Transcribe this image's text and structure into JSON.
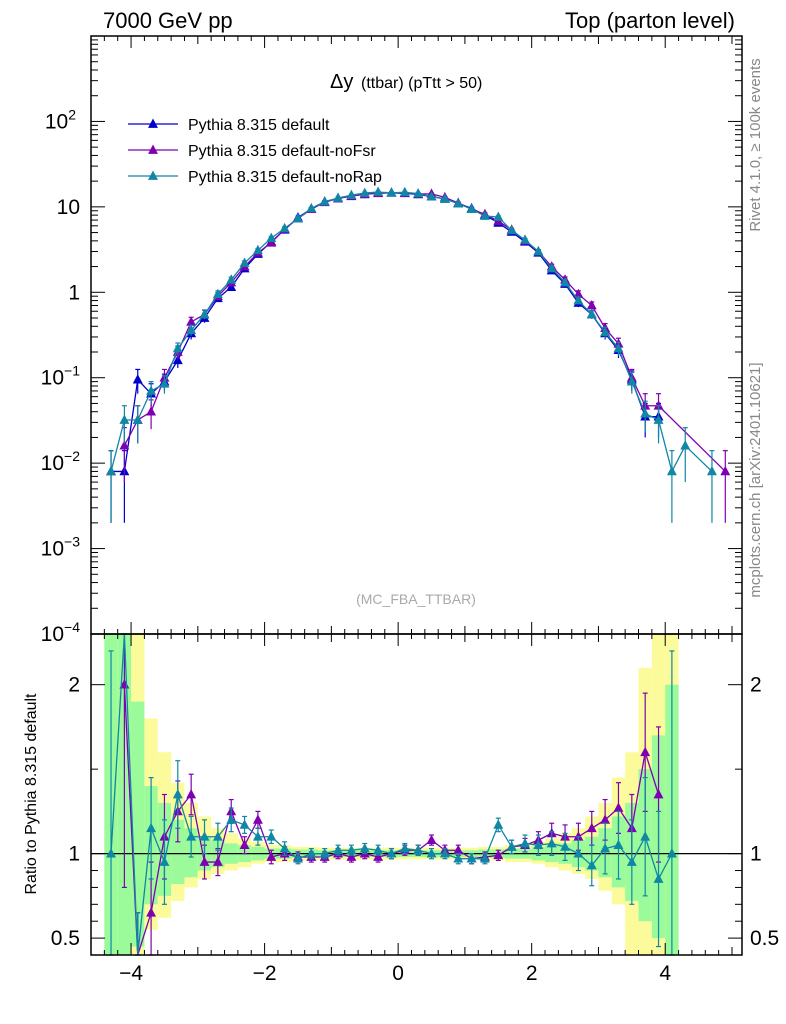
{
  "header": {
    "left": "7000 GeV pp",
    "right": "Top (parton level)"
  },
  "side_labels": {
    "rivet": "Rivet 4.1.0, ≥ 100k events",
    "mcplots": "mcplots.cern.ch [arXiv:2401.10621]"
  },
  "colors": {
    "default": "#0000cc",
    "noFsr": "#7f00b2",
    "noRap": "#0f87a5",
    "band_green": "#9bfb9b",
    "band_yellow": "#fbfb9b"
  },
  "chart_data": {
    "type": "line",
    "title_main": "Δy",
    "title_sub": "(ttbar) (pTtt > 50)",
    "watermark": "(MC_FBA_TTBAR)",
    "xlabel": "",
    "ylabel": "",
    "ratio_ylabel": "Ratio to Pythia 8.315 default",
    "xlim": [
      -4.6,
      5.15
    ],
    "ylim_log": [
      0.0001,
      1000
    ],
    "ratio_ylim": [
      0.4,
      2.3
    ],
    "x_ticks": [
      -4,
      -2,
      0,
      2,
      4
    ],
    "x_tick_labels": [
      "−4",
      "−2",
      "0",
      "2",
      "4"
    ],
    "y_ticks": [
      0.0001,
      0.001,
      0.01,
      0.1,
      1,
      10,
      100
    ],
    "y_tick_labels": [
      {
        "base": "10",
        "exp": "−4"
      },
      {
        "base": "10",
        "exp": "−3"
      },
      {
        "base": "10",
        "exp": "−2"
      },
      {
        "base": "10",
        "exp": "−1"
      },
      {
        "base": "1",
        "exp": ""
      },
      {
        "base": "10",
        "exp": ""
      },
      {
        "base": "10",
        "exp": "2"
      }
    ],
    "ratio_ticks": [
      0.5,
      1,
      2
    ],
    "ratio_tick_labels": [
      "0.5",
      "1",
      "2"
    ],
    "legend": [
      "Pythia 8.315 default",
      "Pythia 8.315 default-noFsr",
      "Pythia 8.315 default-noRap"
    ],
    "series": [
      {
        "name": "Pythia 8.315 default",
        "x": [
          -4.3,
          -4.1,
          -3.9,
          -3.7,
          -3.5,
          -3.3,
          -3.1,
          -2.9,
          -2.7,
          -2.5,
          -2.3,
          -2.1,
          -1.9,
          -1.7,
          -1.5,
          -1.3,
          -1.1,
          -0.9,
          -0.7,
          -0.5,
          -0.3,
          -0.1,
          0.1,
          0.3,
          0.5,
          0.7,
          0.9,
          1.1,
          1.3,
          1.5,
          1.7,
          1.9,
          2.1,
          2.3,
          2.5,
          2.7,
          2.9,
          3.1,
          3.3,
          3.5,
          3.7,
          3.9
        ],
        "y": [
          0.008,
          0.008,
          0.095,
          0.065,
          0.09,
          0.16,
          0.33,
          0.5,
          0.85,
          1.15,
          1.9,
          2.8,
          3.9,
          5.4,
          7.5,
          9.5,
          11.5,
          12.5,
          13.5,
          14.0,
          14.6,
          14.6,
          14.4,
          14.0,
          13.2,
          12.4,
          11.0,
          9.6,
          8.0,
          6.5,
          5.1,
          3.9,
          2.9,
          1.8,
          1.25,
          0.75,
          0.55,
          0.33,
          0.21,
          0.095,
          0.035,
          0.035
        ],
        "err": [
          0.006,
          0.006,
          0.03,
          0.02,
          0.02,
          0.03,
          0.05,
          0.06,
          0.08,
          0.1,
          0.13,
          0.15,
          0.18,
          0.22,
          0.26,
          0.28,
          0.3,
          0.32,
          0.33,
          0.34,
          0.35,
          0.35,
          0.35,
          0.34,
          0.33,
          0.32,
          0.3,
          0.28,
          0.26,
          0.23,
          0.2,
          0.17,
          0.15,
          0.12,
          0.1,
          0.08,
          0.06,
          0.05,
          0.04,
          0.025,
          0.015,
          0.015
        ]
      },
      {
        "name": "Pythia 8.315 default-noFsr",
        "x": [
          -4.1,
          -3.9,
          -3.7,
          -3.5,
          -3.3,
          -3.1,
          -2.9,
          -2.7,
          -2.5,
          -2.3,
          -2.1,
          -1.9,
          -1.7,
          -1.5,
          -1.3,
          -1.1,
          -0.9,
          -0.7,
          -0.5,
          -0.3,
          -0.1,
          0.1,
          0.3,
          0.5,
          0.7,
          0.9,
          1.1,
          1.3,
          1.5,
          1.7,
          1.9,
          2.1,
          2.3,
          2.5,
          2.7,
          2.9,
          3.1,
          3.3,
          3.5,
          3.7,
          3.9,
          4.9
        ],
        "y": [
          0.016,
          0.032,
          0.04,
          0.1,
          0.2,
          0.45,
          0.55,
          0.9,
          1.3,
          2.0,
          2.9,
          3.8,
          5.5,
          7.3,
          9.4,
          11.3,
          12.6,
          13.3,
          14.1,
          14.4,
          14.6,
          14.5,
          14.2,
          14.2,
          12.9,
          11.1,
          9.4,
          8.2,
          6.8,
          5.4,
          4.0,
          3.0,
          2.0,
          1.4,
          0.95,
          0.7,
          0.38,
          0.25,
          0.1,
          0.047,
          0.047,
          0.008
        ],
        "err": [
          0.01,
          0.015,
          0.015,
          0.025,
          0.035,
          0.06,
          0.07,
          0.09,
          0.1,
          0.13,
          0.15,
          0.18,
          0.22,
          0.26,
          0.28,
          0.3,
          0.32,
          0.33,
          0.34,
          0.35,
          0.35,
          0.35,
          0.35,
          0.34,
          0.32,
          0.3,
          0.28,
          0.26,
          0.24,
          0.21,
          0.18,
          0.15,
          0.13,
          0.11,
          0.09,
          0.07,
          0.05,
          0.04,
          0.025,
          0.018,
          0.018,
          0.006
        ]
      },
      {
        "name": "Pythia 8.315 default-noRap",
        "x": [
          -4.3,
          -4.1,
          -3.9,
          -3.7,
          -3.5,
          -3.3,
          -3.1,
          -2.9,
          -2.7,
          -2.5,
          -2.3,
          -2.1,
          -1.9,
          -1.7,
          -1.5,
          -1.3,
          -1.1,
          -0.9,
          -0.7,
          -0.5,
          -0.3,
          -0.1,
          0.1,
          0.3,
          0.5,
          0.7,
          0.9,
          1.1,
          1.3,
          1.5,
          1.7,
          1.9,
          2.1,
          2.3,
          2.5,
          2.7,
          2.9,
          3.1,
          3.3,
          3.5,
          3.7,
          3.9,
          4.1,
          4.3,
          4.7
        ],
        "y": [
          0.008,
          0.032,
          0.032,
          0.07,
          0.085,
          0.22,
          0.36,
          0.55,
          0.95,
          1.4,
          2.2,
          3.1,
          4.3,
          5.6,
          7.3,
          9.6,
          11.5,
          12.7,
          13.7,
          14.5,
          14.9,
          14.6,
          14.8,
          14.3,
          13.2,
          12.4,
          10.9,
          9.4,
          7.8,
          7.6,
          5.3,
          4.1,
          3.0,
          1.9,
          1.3,
          0.8,
          0.55,
          0.34,
          0.22,
          0.09,
          0.038,
          0.032,
          0.008,
          0.016,
          0.008
        ],
        "err": [
          0.006,
          0.015,
          0.015,
          0.02,
          0.02,
          0.035,
          0.05,
          0.065,
          0.09,
          0.1,
          0.13,
          0.15,
          0.18,
          0.22,
          0.26,
          0.28,
          0.3,
          0.32,
          0.33,
          0.34,
          0.35,
          0.35,
          0.35,
          0.34,
          0.33,
          0.32,
          0.3,
          0.28,
          0.26,
          0.24,
          0.2,
          0.17,
          0.15,
          0.12,
          0.1,
          0.08,
          0.06,
          0.05,
          0.04,
          0.025,
          0.015,
          0.015,
          0.006,
          0.01,
          0.006
        ]
      }
    ],
    "ratio_series": [
      {
        "name": "Pythia 8.315 default-noFsr",
        "x": [
          -4.1,
          -3.9,
          -3.7,
          -3.5,
          -3.3,
          -3.1,
          -2.9,
          -2.7,
          -2.5,
          -2.3,
          -2.1,
          -1.9,
          -1.7,
          -1.5,
          -1.3,
          -1.1,
          -0.9,
          -0.7,
          -0.5,
          -0.3,
          -0.1,
          0.1,
          0.3,
          0.5,
          0.7,
          0.9,
          1.1,
          1.3,
          1.5,
          1.7,
          1.9,
          2.1,
          2.3,
          2.5,
          2.7,
          2.9,
          3.1,
          3.3,
          3.5,
          3.7,
          3.9
        ],
        "y": [
          2.0,
          0.35,
          0.65,
          1.1,
          1.25,
          1.35,
          0.95,
          0.95,
          1.25,
          1.05,
          1.2,
          0.98,
          1.0,
          0.98,
          0.98,
          0.98,
          1.0,
          0.98,
          1.0,
          0.98,
          1.0,
          1.02,
          1.02,
          1.08,
          1.02,
          1.02,
          0.97,
          0.98,
          0.99,
          1.04,
          1.05,
          1.08,
          1.12,
          1.1,
          1.1,
          1.15,
          1.2,
          1.27,
          1.15,
          1.6,
          1.35
        ],
        "err": [
          1.2,
          0.3,
          0.3,
          0.25,
          0.18,
          0.12,
          0.1,
          0.08,
          0.07,
          0.05,
          0.05,
          0.04,
          0.04,
          0.03,
          0.03,
          0.03,
          0.03,
          0.03,
          0.03,
          0.03,
          0.03,
          0.03,
          0.03,
          0.03,
          0.03,
          0.03,
          0.03,
          0.03,
          0.03,
          0.04,
          0.04,
          0.05,
          0.06,
          0.07,
          0.08,
          0.1,
          0.12,
          0.15,
          0.2,
          0.35,
          0.4
        ]
      },
      {
        "name": "Pythia 8.315 default-noRap",
        "x": [
          -4.3,
          -4.1,
          -3.9,
          -3.7,
          -3.5,
          -3.3,
          -3.1,
          -2.9,
          -2.7,
          -2.5,
          -2.3,
          -2.1,
          -1.9,
          -1.7,
          -1.5,
          -1.3,
          -1.1,
          -0.9,
          -0.7,
          -0.5,
          -0.3,
          -0.1,
          0.1,
          0.3,
          0.5,
          0.7,
          0.9,
          1.1,
          1.3,
          1.5,
          1.7,
          1.9,
          2.1,
          2.3,
          2.5,
          2.7,
          2.9,
          3.1,
          3.3,
          3.5,
          3.7,
          3.9,
          4.1
        ],
        "y": [
          1.0,
          4.0,
          0.35,
          1.15,
          0.95,
          1.35,
          1.1,
          1.1,
          1.1,
          1.2,
          1.17,
          1.1,
          1.1,
          1.03,
          0.97,
          1.0,
          1.0,
          1.02,
          1.02,
          1.03,
          1.02,
          1.0,
          1.03,
          1.02,
          1.0,
          1.0,
          0.97,
          0.97,
          0.97,
          1.17,
          1.04,
          1.06,
          1.05,
          1.06,
          1.04,
          1.0,
          0.93,
          1.03,
          1.05,
          0.95,
          1.1,
          0.85,
          1.0
        ],
        "err": [
          1.2,
          1.5,
          0.3,
          0.3,
          0.25,
          0.2,
          0.12,
          0.1,
          0.08,
          0.07,
          0.05,
          0.05,
          0.04,
          0.04,
          0.03,
          0.03,
          0.03,
          0.03,
          0.03,
          0.03,
          0.03,
          0.03,
          0.03,
          0.03,
          0.03,
          0.03,
          0.03,
          0.03,
          0.03,
          0.04,
          0.04,
          0.05,
          0.06,
          0.07,
          0.08,
          0.1,
          0.12,
          0.15,
          0.2,
          0.25,
          0.35,
          0.4,
          1.2
        ]
      }
    ],
    "ratio_bands": [
      {
        "x0": -4.4,
        "x1": -4.2,
        "g": [
          0.3,
          2.3
        ],
        "yl": [
          0.3,
          2.3
        ]
      },
      {
        "x0": -4.2,
        "x1": -4.0,
        "g": [
          0.3,
          2.3
        ],
        "yl": [
          0.3,
          2.3
        ]
      },
      {
        "x0": -4.0,
        "x1": -3.8,
        "g": [
          0.45,
          1.9
        ],
        "yl": [
          0.3,
          2.3
        ]
      },
      {
        "x0": -3.8,
        "x1": -3.6,
        "g": [
          0.7,
          1.4
        ],
        "yl": [
          0.55,
          1.8
        ]
      },
      {
        "x0": -3.6,
        "x1": -3.4,
        "g": [
          0.75,
          1.3
        ],
        "yl": [
          0.62,
          1.6
        ]
      },
      {
        "x0": -3.4,
        "x1": -3.2,
        "g": [
          0.82,
          1.2
        ],
        "yl": [
          0.72,
          1.42
        ]
      },
      {
        "x0": -3.2,
        "x1": -3.0,
        "g": [
          0.86,
          1.15
        ],
        "yl": [
          0.8,
          1.3
        ]
      },
      {
        "x0": -3.0,
        "x1": -2.8,
        "g": [
          0.9,
          1.1
        ],
        "yl": [
          0.85,
          1.22
        ]
      },
      {
        "x0": -2.8,
        "x1": -2.6,
        "g": [
          0.92,
          1.08
        ],
        "yl": [
          0.88,
          1.15
        ]
      },
      {
        "x0": -2.6,
        "x1": -2.4,
        "g": [
          0.94,
          1.06
        ],
        "yl": [
          0.9,
          1.12
        ]
      },
      {
        "x0": -2.4,
        "x1": -2.2,
        "g": [
          0.95,
          1.05
        ],
        "yl": [
          0.92,
          1.09
        ]
      },
      {
        "x0": -2.2,
        "x1": -2.0,
        "g": [
          0.96,
          1.04
        ],
        "yl": [
          0.94,
          1.07
        ]
      },
      {
        "x0": -2.0,
        "x1": -1.6,
        "g": [
          0.97,
          1.03
        ],
        "yl": [
          0.95,
          1.05
        ]
      },
      {
        "x0": -1.6,
        "x1": -1.2,
        "g": [
          0.975,
          1.025
        ],
        "yl": [
          0.96,
          1.04
        ]
      },
      {
        "x0": -1.2,
        "x1": 1.2,
        "g": [
          0.98,
          1.02
        ],
        "yl": [
          0.965,
          1.035
        ]
      },
      {
        "x0": 1.2,
        "x1": 1.6,
        "g": [
          0.975,
          1.025
        ],
        "yl": [
          0.96,
          1.04
        ]
      },
      {
        "x0": 1.6,
        "x1": 2.0,
        "g": [
          0.97,
          1.03
        ],
        "yl": [
          0.95,
          1.05
        ]
      },
      {
        "x0": 2.0,
        "x1": 2.2,
        "g": [
          0.96,
          1.04
        ],
        "yl": [
          0.94,
          1.07
        ]
      },
      {
        "x0": 2.2,
        "x1": 2.4,
        "g": [
          0.95,
          1.05
        ],
        "yl": [
          0.92,
          1.09
        ]
      },
      {
        "x0": 2.4,
        "x1": 2.6,
        "g": [
          0.94,
          1.06
        ],
        "yl": [
          0.9,
          1.12
        ]
      },
      {
        "x0": 2.6,
        "x1": 2.8,
        "g": [
          0.92,
          1.08
        ],
        "yl": [
          0.88,
          1.15
        ]
      },
      {
        "x0": 2.8,
        "x1": 3.0,
        "g": [
          0.9,
          1.1
        ],
        "yl": [
          0.85,
          1.22
        ]
      },
      {
        "x0": 3.0,
        "x1": 3.2,
        "g": [
          0.86,
          1.15
        ],
        "yl": [
          0.78,
          1.3
        ]
      },
      {
        "x0": 3.2,
        "x1": 3.4,
        "g": [
          0.8,
          1.22
        ],
        "yl": [
          0.7,
          1.45
        ]
      },
      {
        "x0": 3.4,
        "x1": 3.6,
        "g": [
          0.72,
          1.3
        ],
        "yl": [
          0.3,
          1.6
        ]
      },
      {
        "x0": 3.6,
        "x1": 3.8,
        "g": [
          0.6,
          1.5
        ],
        "yl": [
          0.3,
          2.1
        ]
      },
      {
        "x0": 3.8,
        "x1": 4.0,
        "g": [
          0.5,
          1.7
        ],
        "yl": [
          0.3,
          2.3
        ]
      },
      {
        "x0": 4.0,
        "x1": 4.2,
        "g": [
          0.3,
          2.0
        ],
        "yl": [
          0.3,
          2.3
        ]
      }
    ]
  }
}
